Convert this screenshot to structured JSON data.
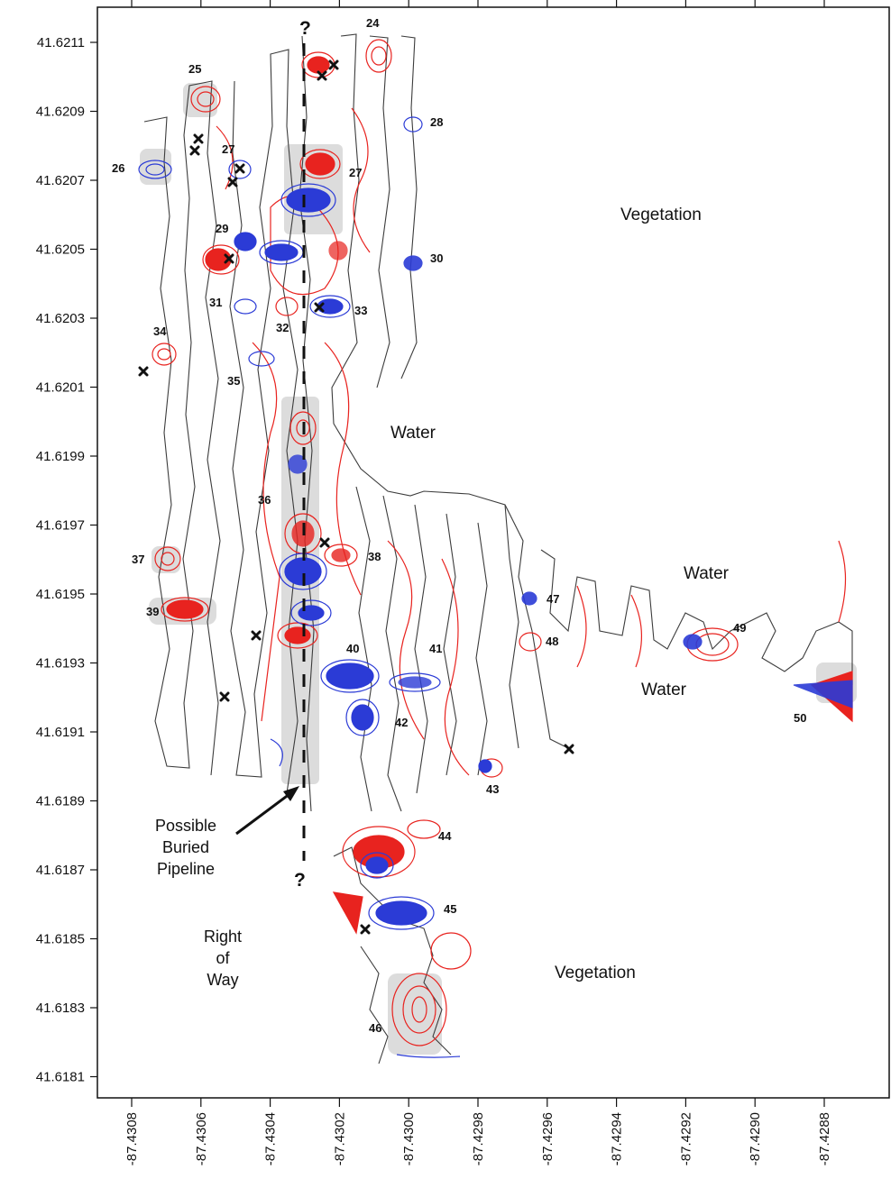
{
  "map": {
    "y_ticks": [
      "41.6211",
      "41.6209",
      "41.6207",
      "41.6205",
      "41.6203",
      "41.6201",
      "41.6199",
      "41.6197",
      "41.6195",
      "41.6193",
      "41.6191",
      "41.6189",
      "41.6187",
      "41.6185",
      "41.6183",
      "41.6181"
    ],
    "x_ticks": [
      "-87.4308",
      "-87.4306",
      "-87.4304",
      "-87.4302",
      "-87.4300",
      "-87.4298",
      "-87.4296",
      "-87.4294",
      "-87.4292",
      "-87.4290",
      "-87.4288"
    ],
    "region_labels": {
      "vegetation_top": "Vegetation",
      "water_center": "Water",
      "water_right_top": "Water",
      "water_right_bottom": "Water",
      "vegetation_bottom": "Vegetation"
    },
    "right_of_way": [
      "Right",
      "of",
      "Way"
    ],
    "pipeline_callout": [
      "Possible",
      "Buried",
      "Pipeline"
    ],
    "question_marks": [
      "?",
      "?"
    ],
    "anomaly_labels": [
      "24",
      "25",
      "26",
      "27",
      "27",
      "28",
      "29",
      "30",
      "31",
      "32",
      "33",
      "34",
      "35",
      "36",
      "37",
      "38",
      "39",
      "40",
      "41",
      "42",
      "43",
      "44",
      "45",
      "46",
      "47",
      "48",
      "49",
      "50"
    ],
    "colors": {
      "positive_contour": "#e8231f",
      "negative_contour": "#2b3bd6",
      "survey_track": "#3c3c3c",
      "anomaly_highlight": "#d9d9d9"
    }
  }
}
